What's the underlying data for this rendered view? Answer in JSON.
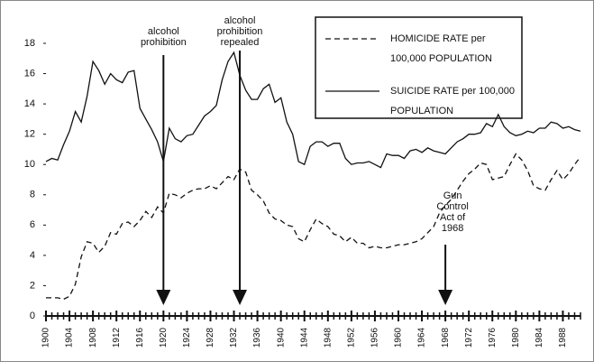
{
  "chart_data": {
    "type": "line",
    "x": [
      1900,
      1901,
      1902,
      1903,
      1904,
      1905,
      1906,
      1907,
      1908,
      1909,
      1910,
      1911,
      1912,
      1913,
      1914,
      1915,
      1916,
      1917,
      1918,
      1919,
      1920,
      1921,
      1922,
      1923,
      1924,
      1925,
      1926,
      1927,
      1928,
      1929,
      1930,
      1931,
      1932,
      1933,
      1934,
      1935,
      1936,
      1937,
      1938,
      1939,
      1940,
      1941,
      1942,
      1943,
      1944,
      1945,
      1946,
      1947,
      1948,
      1949,
      1950,
      1951,
      1952,
      1953,
      1954,
      1955,
      1956,
      1957,
      1958,
      1959,
      1960,
      1961,
      1962,
      1963,
      1964,
      1965,
      1966,
      1967,
      1968,
      1969,
      1970,
      1971,
      1972,
      1973,
      1974,
      1975,
      1976,
      1977,
      1978,
      1979,
      1980,
      1981,
      1982,
      1983,
      1984,
      1985,
      1986,
      1987,
      1988,
      1989,
      1990,
      1991
    ],
    "series": [
      {
        "name": "HOMICIDE RATE per 100,000 POPULATION",
        "color": "#111111",
        "dash": true,
        "values": [
          1.2,
          1.2,
          1.2,
          1.1,
          1.3,
          2.1,
          3.9,
          4.9,
          4.8,
          4.2,
          4.6,
          5.5,
          5.4,
          6.1,
          6.2,
          5.9,
          6.3,
          6.9,
          6.5,
          7.2,
          6.8,
          8.1,
          8.0,
          7.8,
          8.1,
          8.3,
          8.4,
          8.4,
          8.6,
          8.4,
          8.8,
          9.2,
          9.0,
          9.7,
          9.5,
          8.3,
          8.0,
          7.6,
          6.8,
          6.4,
          6.3,
          6.0,
          5.9,
          5.1,
          4.9,
          5.7,
          6.4,
          6.1,
          5.9,
          5.4,
          5.3,
          4.9,
          5.2,
          4.8,
          4.8,
          4.5,
          4.6,
          4.5,
          4.5,
          4.6,
          4.7,
          4.7,
          4.8,
          4.9,
          5.1,
          5.5,
          5.9,
          6.8,
          7.3,
          7.7,
          8.3,
          8.9,
          9.4,
          9.7,
          10.1,
          10.0,
          9.0,
          9.1,
          9.2,
          10.0,
          10.7,
          10.3,
          9.6,
          8.6,
          8.4,
          8.3,
          9.0,
          9.6,
          9.0,
          9.4,
          10.0,
          10.5
        ]
      },
      {
        "name": "SUICIDE RATE per 100,000 POPULATION",
        "color": "#111111",
        "dash": false,
        "values": [
          10.2,
          10.4,
          10.3,
          11.3,
          12.2,
          13.5,
          12.8,
          14.5,
          16.8,
          16.2,
          15.3,
          16.0,
          15.6,
          15.4,
          16.1,
          16.2,
          13.7,
          13.0,
          12.3,
          11.5,
          10.2,
          12.4,
          11.7,
          11.5,
          11.9,
          12.0,
          12.6,
          13.2,
          13.5,
          13.9,
          15.6,
          16.8,
          17.4,
          15.9,
          14.9,
          14.3,
          14.3,
          15.0,
          15.3,
          14.1,
          14.4,
          12.8,
          12.0,
          10.2,
          10.0,
          11.2,
          11.5,
          11.5,
          11.2,
          11.4,
          11.4,
          10.4,
          10.0,
          10.1,
          10.1,
          10.2,
          10.0,
          9.8,
          10.7,
          10.6,
          10.6,
          10.4,
          10.9,
          11.0,
          10.8,
          11.1,
          10.9,
          10.8,
          10.7,
          11.1,
          11.5,
          11.7,
          12.0,
          12.0,
          12.1,
          12.7,
          12.5,
          13.3,
          12.5,
          12.1,
          11.9,
          12.0,
          12.2,
          12.1,
          12.4,
          12.4,
          12.8,
          12.7,
          12.4,
          12.5,
          12.3,
          12.2
        ]
      }
    ],
    "annotations": [
      {
        "text": "alcohol prohibition",
        "x": 1920
      },
      {
        "text": "alcohol prohibition repealed",
        "x": 1933
      },
      {
        "text": "Gun Control Act of 1968",
        "x": 1968
      }
    ],
    "xlim": [
      1900,
      1991
    ],
    "xticks": [
      1900,
      1904,
      1908,
      1912,
      1916,
      1920,
      1924,
      1928,
      1932,
      1936,
      1940,
      1944,
      1948,
      1952,
      1956,
      1960,
      1964,
      1968,
      1972,
      1976,
      1980,
      1984,
      1988
    ],
    "ylim": [
      0,
      18
    ],
    "yticks": [
      0,
      2,
      4,
      6,
      8,
      10,
      12,
      14,
      16,
      18
    ],
    "grid": false
  }
}
